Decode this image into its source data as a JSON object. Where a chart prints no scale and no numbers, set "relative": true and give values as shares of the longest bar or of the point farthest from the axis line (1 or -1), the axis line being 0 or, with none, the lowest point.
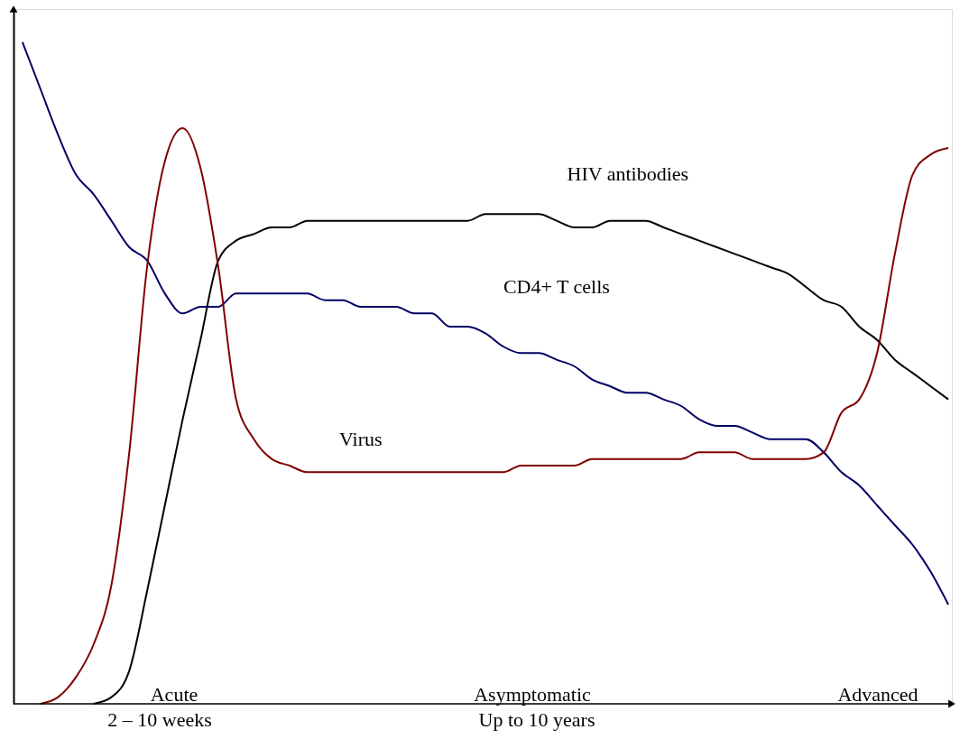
{
  "chart_data": {
    "type": "line",
    "relative": true,
    "categories": [
      null,
      null,
      null,
      null,
      null,
      null,
      null,
      null,
      null,
      null,
      null,
      null,
      null,
      null,
      null,
      null,
      null,
      null,
      null,
      null,
      null,
      null,
      null,
      null,
      null,
      null,
      null,
      null,
      null,
      null,
      null,
      null,
      null,
      null,
      null,
      null,
      null,
      null,
      null,
      null,
      null,
      null,
      null,
      null,
      null,
      null,
      null,
      null,
      null,
      null,
      null,
      null,
      null
    ],
    "series": [
      {
        "name": "HIV antibodies",
        "color": "#000000",
        "values": [
          null,
          null,
          null,
          null,
          0.0,
          0.01,
          0.05,
          0.17,
          0.3,
          0.43,
          0.55,
          0.67,
          0.7,
          0.71,
          0.72,
          0.72,
          0.73,
          0.73,
          0.73,
          0.73,
          0.73,
          0.73,
          0.73,
          0.73,
          0.73,
          0.73,
          0.74,
          0.74,
          0.74,
          0.74,
          0.73,
          0.72,
          0.72,
          0.73,
          0.73,
          0.73,
          0.72,
          0.71,
          0.7,
          0.69,
          0.68,
          0.67,
          0.66,
          0.65,
          0.63,
          0.61,
          0.6,
          0.57,
          0.55,
          0.52,
          0.5,
          0.48,
          0.46
        ]
      },
      {
        "name": "CD4+ T cells",
        "color": "#000066",
        "values": [
          1.0,
          0.93,
          0.86,
          0.8,
          0.77,
          0.73,
          0.69,
          0.67,
          0.62,
          0.59,
          0.6,
          0.6,
          0.62,
          0.62,
          0.62,
          0.62,
          0.62,
          0.61,
          0.61,
          0.6,
          0.6,
          0.6,
          0.59,
          0.59,
          0.57,
          0.57,
          0.56,
          0.54,
          0.53,
          0.53,
          0.52,
          0.51,
          0.49,
          0.48,
          0.47,
          0.47,
          0.46,
          0.45,
          0.43,
          0.42,
          0.42,
          0.41,
          0.4,
          0.4,
          0.4,
          0.38,
          0.35,
          0.33,
          0.3,
          0.27,
          0.24,
          0.2,
          0.15
        ]
      },
      {
        "name": "Virus",
        "color": "#800000",
        "values": [
          null,
          0.0,
          0.01,
          0.04,
          0.09,
          0.18,
          0.38,
          0.66,
          0.82,
          0.87,
          0.81,
          0.66,
          0.46,
          0.4,
          0.37,
          0.36,
          0.35,
          0.35,
          0.35,
          0.35,
          0.35,
          0.35,
          0.35,
          0.35,
          0.35,
          0.35,
          0.35,
          0.35,
          0.36,
          0.36,
          0.36,
          0.36,
          0.37,
          0.37,
          0.37,
          0.37,
          0.37,
          0.37,
          0.38,
          0.38,
          0.38,
          0.37,
          0.37,
          0.37,
          0.37,
          0.38,
          0.44,
          0.46,
          0.53,
          0.68,
          0.8,
          0.83,
          0.84
        ]
      }
    ],
    "annotations": [
      "Acute",
      "2 – 10 weeks",
      "Asymptomatic",
      "Up to 10 years",
      "Advanced"
    ]
  }
}
